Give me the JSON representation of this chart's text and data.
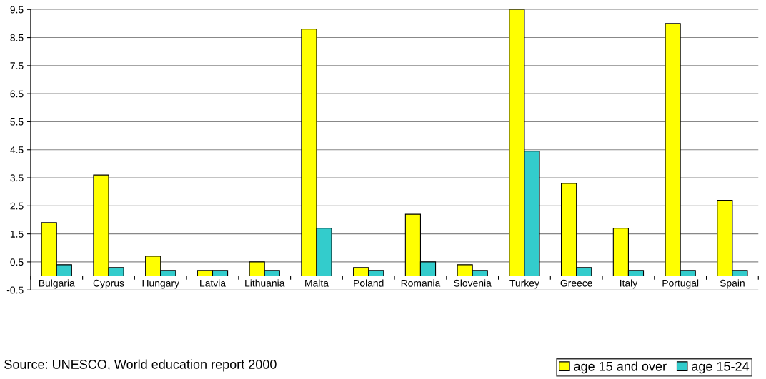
{
  "chart_data": {
    "type": "bar",
    "categories": [
      "Bulgaria",
      "Cyprus",
      "Hungary",
      "Latvia",
      "Lithuania",
      "Malta",
      "Poland",
      "Romania",
      "Slovenia",
      "Turkey",
      "Greece",
      "Italy",
      "Portugal",
      "Spain"
    ],
    "series": [
      {
        "name": "age 15 and over",
        "color": "#ffff00",
        "values": [
          1.9,
          3.6,
          0.7,
          0.2,
          0.5,
          8.8,
          0.3,
          2.2,
          0.4,
          9.5,
          3.3,
          1.7,
          9.0,
          2.7
        ]
      },
      {
        "name": "age 15-24",
        "color": "#33cccc",
        "values": [
          0.4,
          0.3,
          0.2,
          0.2,
          0.2,
          1.7,
          0.2,
          0.5,
          0.2,
          4.45,
          0.3,
          0.2,
          0.2,
          0.2
        ]
      }
    ],
    "ylim": [
      -0.5,
      9.5
    ],
    "yticks": [
      -0.5,
      0.5,
      1.5,
      2.5,
      3.5,
      4.5,
      5.5,
      6.5,
      7.5,
      8.5,
      9.5
    ],
    "grid": "y",
    "legend": "bottom right",
    "annotations": [
      "Source: UNESCO, World education report 2000"
    ]
  }
}
